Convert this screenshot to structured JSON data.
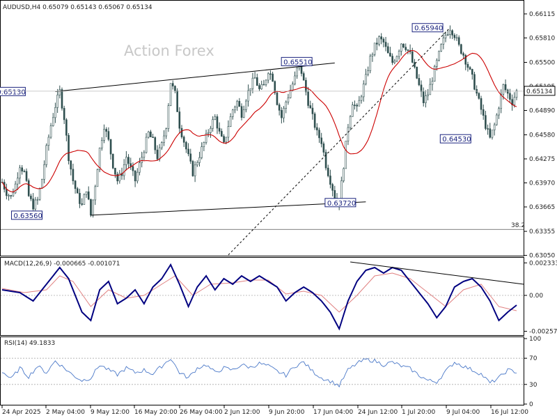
{
  "chart_data": [
    {
      "type": "candlestick",
      "symbol_header": "AUDUSD,H4  0.65079  0.65143  0.65067  0.65134",
      "watermark": "Action Forex",
      "ylim": [
        0.63055,
        0.6615
      ],
      "y_ticks": [
        "0.66115",
        "0.65810",
        "0.65500",
        "0.65195",
        "0.64890",
        "0.64580",
        "0.64275",
        "0.63970",
        "0.63665",
        "0.63355",
        "0.63050"
      ],
      "x_tick_labels": [
        "24 Apr 2025",
        "2 May 04:00",
        "9 May 12:00",
        "16 May 20:00",
        "26 May 04:00",
        "2 Jun 12:00",
        "9 Jun 20:00",
        "17 Jun 04:00",
        "24 Jun 12:00",
        "1 Jul 20:00",
        "9 Jul 04:00",
        "16 Jul 12:00"
      ],
      "current_price": "0.65134",
      "fib_label": "38.2",
      "fib_level": 0.6338,
      "price_path": [
        [
          0,
          0.6398
        ],
        [
          2,
          0.6385
        ],
        [
          4,
          0.6379
        ],
        [
          6,
          0.6395
        ],
        [
          8,
          0.642
        ],
        [
          10,
          0.641
        ],
        [
          12,
          0.638
        ],
        [
          14,
          0.6368
        ],
        [
          16,
          0.6375
        ],
        [
          18,
          0.6402
        ],
        [
          20,
          0.644
        ],
        [
          22,
          0.647
        ],
        [
          24,
          0.6495
        ],
        [
          26,
          0.6513
        ],
        [
          28,
          0.648
        ],
        [
          30,
          0.643
        ],
        [
          32,
          0.64
        ],
        [
          34,
          0.638
        ],
        [
          36,
          0.6368
        ],
        [
          38,
          0.639
        ],
        [
          40,
          0.6356
        ],
        [
          42,
          0.6395
        ],
        [
          44,
          0.644
        ],
        [
          46,
          0.647
        ],
        [
          48,
          0.645
        ],
        [
          50,
          0.642
        ],
        [
          52,
          0.64
        ],
        [
          54,
          0.641
        ],
        [
          56,
          0.643
        ],
        [
          58,
          0.6415
        ],
        [
          60,
          0.64
        ],
        [
          62,
          0.642
        ],
        [
          64,
          0.644
        ],
        [
          66,
          0.646
        ],
        [
          68,
          0.645
        ],
        [
          70,
          0.643
        ],
        [
          72,
          0.6445
        ],
        [
          74,
          0.647
        ],
        [
          76,
          0.6525
        ],
        [
          78,
          0.651
        ],
        [
          80,
          0.647
        ],
        [
          82,
          0.645
        ],
        [
          84,
          0.643
        ],
        [
          86,
          0.641
        ],
        [
          88,
          0.6425
        ],
        [
          90,
          0.644
        ],
        [
          92,
          0.6455
        ],
        [
          94,
          0.647
        ],
        [
          96,
          0.648
        ],
        [
          98,
          0.646
        ],
        [
          100,
          0.6445
        ],
        [
          102,
          0.647
        ],
        [
          104,
          0.649
        ],
        [
          106,
          0.65
        ],
        [
          108,
          0.6485
        ],
        [
          110,
          0.6505
        ],
        [
          112,
          0.652
        ],
        [
          114,
          0.653
        ],
        [
          116,
          0.6515
        ],
        [
          118,
          0.652
        ],
        [
          120,
          0.654
        ],
        [
          122,
          0.653
        ],
        [
          124,
          0.65
        ],
        [
          126,
          0.648
        ],
        [
          128,
          0.65
        ],
        [
          130,
          0.6515
        ],
        [
          132,
          0.653
        ],
        [
          134,
          0.6551
        ],
        [
          136,
          0.6525
        ],
        [
          138,
          0.65
        ],
        [
          140,
          0.648
        ],
        [
          142,
          0.646
        ],
        [
          144,
          0.645
        ],
        [
          146,
          0.642
        ],
        [
          148,
          0.64
        ],
        [
          150,
          0.638
        ],
        [
          152,
          0.6372
        ],
        [
          154,
          0.642
        ],
        [
          156,
          0.647
        ],
        [
          158,
          0.65
        ],
        [
          160,
          0.649
        ],
        [
          162,
          0.651
        ],
        [
          164,
          0.653
        ],
        [
          166,
          0.6555
        ],
        [
          168,
          0.657
        ],
        [
          170,
          0.658
        ],
        [
          172,
          0.6575
        ],
        [
          174,
          0.656
        ],
        [
          176,
          0.655
        ],
        [
          178,
          0.656
        ],
        [
          180,
          0.6575
        ],
        [
          182,
          0.657
        ],
        [
          184,
          0.656
        ],
        [
          186,
          0.654
        ],
        [
          188,
          0.652
        ],
        [
          190,
          0.65
        ],
        [
          192,
          0.651
        ],
        [
          194,
          0.653
        ],
        [
          196,
          0.655
        ],
        [
          198,
          0.657
        ],
        [
          200,
          0.6585
        ],
        [
          202,
          0.6594
        ],
        [
          204,
          0.6585
        ],
        [
          206,
          0.657
        ],
        [
          208,
          0.656
        ],
        [
          210,
          0.6545
        ],
        [
          212,
          0.653
        ],
        [
          214,
          0.651
        ],
        [
          216,
          0.649
        ],
        [
          218,
          0.647
        ],
        [
          220,
          0.6453
        ],
        [
          222,
          0.647
        ],
        [
          224,
          0.6495
        ],
        [
          226,
          0.652
        ],
        [
          228,
          0.651
        ],
        [
          230,
          0.65
        ],
        [
          232,
          0.6513
        ]
      ],
      "annotations": [
        "0.65130",
        "0.65510",
        "0.65940",
        "0.63560",
        "0.63720",
        "0.64530"
      ],
      "colors": {
        "candle": "#2f4f4f",
        "ma": "#cc0000",
        "trend": "#000000",
        "box_border": "#1a237e"
      }
    },
    {
      "type": "line",
      "indicator_label": "MACD(12,26,9) -0.000665 -0.001071",
      "y_tick_labels": [
        "0.002333",
        "0.00",
        "-0.002574"
      ],
      "ylim": [
        -0.0028,
        0.0026
      ],
      "macd_path": [
        [
          0,
          0.0004
        ],
        [
          8,
          0.0002
        ],
        [
          14,
          -0.0004
        ],
        [
          20,
          0.0008
        ],
        [
          26,
          0.002
        ],
        [
          30,
          0.0012
        ],
        [
          36,
          -0.0012
        ],
        [
          40,
          -0.0018
        ],
        [
          44,
          0.0004
        ],
        [
          48,
          0.001
        ],
        [
          52,
          -0.0006
        ],
        [
          56,
          -0.0002
        ],
        [
          60,
          0.0004
        ],
        [
          64,
          -0.0006
        ],
        [
          68,
          0.0006
        ],
        [
          72,
          0.0012
        ],
        [
          76,
          0.0022
        ],
        [
          80,
          0.0008
        ],
        [
          84,
          -0.0008
        ],
        [
          88,
          0.0006
        ],
        [
          92,
          0.0014
        ],
        [
          96,
          0.0004
        ],
        [
          100,
          0.0012
        ],
        [
          104,
          0.0008
        ],
        [
          108,
          0.0014
        ],
        [
          112,
          0.001
        ],
        [
          116,
          0.0014
        ],
        [
          120,
          0.001
        ],
        [
          124,
          0.0006
        ],
        [
          128,
          -0.0004
        ],
        [
          132,
          0.0002
        ],
        [
          136,
          0.0006
        ],
        [
          140,
          0.0002
        ],
        [
          144,
          -0.0004
        ],
        [
          148,
          -0.0012
        ],
        [
          152,
          -0.0024
        ],
        [
          156,
          -0.0004
        ],
        [
          160,
          0.001
        ],
        [
          164,
          0.0018
        ],
        [
          168,
          0.002
        ],
        [
          172,
          0.0016
        ],
        [
          176,
          0.002
        ],
        [
          180,
          0.0018
        ],
        [
          184,
          0.001
        ],
        [
          188,
          0.0002
        ],
        [
          192,
          -0.0006
        ],
        [
          196,
          -0.0016
        ],
        [
          200,
          -0.0008
        ],
        [
          204,
          0.0006
        ],
        [
          208,
          0.001
        ],
        [
          212,
          0.0012
        ],
        [
          216,
          0.0006
        ],
        [
          220,
          -0.0004
        ],
        [
          224,
          -0.0018
        ],
        [
          228,
          -0.0012
        ],
        [
          232,
          -0.0007
        ]
      ],
      "signal_path": [
        [
          0,
          0.0005
        ],
        [
          10,
          0.0002
        ],
        [
          20,
          0.0004
        ],
        [
          26,
          0.0014
        ],
        [
          32,
          0.001
        ],
        [
          40,
          -0.0008
        ],
        [
          48,
          0.0004
        ],
        [
          56,
          -0.0002
        ],
        [
          64,
          0.0
        ],
        [
          72,
          0.0008
        ],
        [
          78,
          0.0014
        ],
        [
          86,
          0.0
        ],
        [
          94,
          0.0008
        ],
        [
          104,
          0.0009
        ],
        [
          112,
          0.0011
        ],
        [
          120,
          0.0011
        ],
        [
          128,
          0.0001
        ],
        [
          136,
          0.0003
        ],
        [
          144,
          0.0
        ],
        [
          152,
          -0.0012
        ],
        [
          160,
          0.0
        ],
        [
          168,
          0.0014
        ],
        [
          176,
          0.0016
        ],
        [
          184,
          0.0012
        ],
        [
          192,
          0.0002
        ],
        [
          200,
          -0.0008
        ],
        [
          208,
          0.0004
        ],
        [
          216,
          0.0008
        ],
        [
          224,
          -0.0008
        ],
        [
          232,
          -0.0011
        ]
      ],
      "colors": {
        "macd": "#000080",
        "signal": "#e08080",
        "trend": "#000000"
      }
    },
    {
      "type": "line",
      "indicator_label": "RSI(14) 49.1833",
      "y_tick_labels": [
        "100",
        "70",
        "30",
        "0"
      ],
      "ylim": [
        0,
        100
      ],
      "rsi_path": [
        [
          0,
          50
        ],
        [
          4,
          38
        ],
        [
          8,
          55
        ],
        [
          12,
          42
        ],
        [
          16,
          58
        ],
        [
          20,
          48
        ],
        [
          24,
          66
        ],
        [
          28,
          55
        ],
        [
          32,
          44
        ],
        [
          36,
          36
        ],
        [
          40,
          40
        ],
        [
          44,
          60
        ],
        [
          48,
          52
        ],
        [
          52,
          45
        ],
        [
          56,
          55
        ],
        [
          60,
          48
        ],
        [
          64,
          52
        ],
        [
          68,
          46
        ],
        [
          72,
          58
        ],
        [
          76,
          70
        ],
        [
          80,
          48
        ],
        [
          84,
          40
        ],
        [
          88,
          55
        ],
        [
          92,
          60
        ],
        [
          96,
          48
        ],
        [
          100,
          55
        ],
        [
          104,
          52
        ],
        [
          108,
          60
        ],
        [
          112,
          56
        ],
        [
          116,
          62
        ],
        [
          120,
          58
        ],
        [
          124,
          50
        ],
        [
          128,
          44
        ],
        [
          132,
          58
        ],
        [
          136,
          64
        ],
        [
          140,
          50
        ],
        [
          144,
          40
        ],
        [
          148,
          35
        ],
        [
          152,
          28
        ],
        [
          156,
          52
        ],
        [
          160,
          62
        ],
        [
          164,
          68
        ],
        [
          168,
          66
        ],
        [
          172,
          60
        ],
        [
          176,
          64
        ],
        [
          180,
          58
        ],
        [
          184,
          54
        ],
        [
          188,
          44
        ],
        [
          192,
          36
        ],
        [
          196,
          34
        ],
        [
          200,
          50
        ],
        [
          204,
          64
        ],
        [
          208,
          58
        ],
        [
          212,
          52
        ],
        [
          216,
          46
        ],
        [
          220,
          32
        ],
        [
          224,
          40
        ],
        [
          228,
          52
        ],
        [
          232,
          49
        ]
      ],
      "colors": {
        "rsi": "#4a78c8"
      }
    }
  ]
}
